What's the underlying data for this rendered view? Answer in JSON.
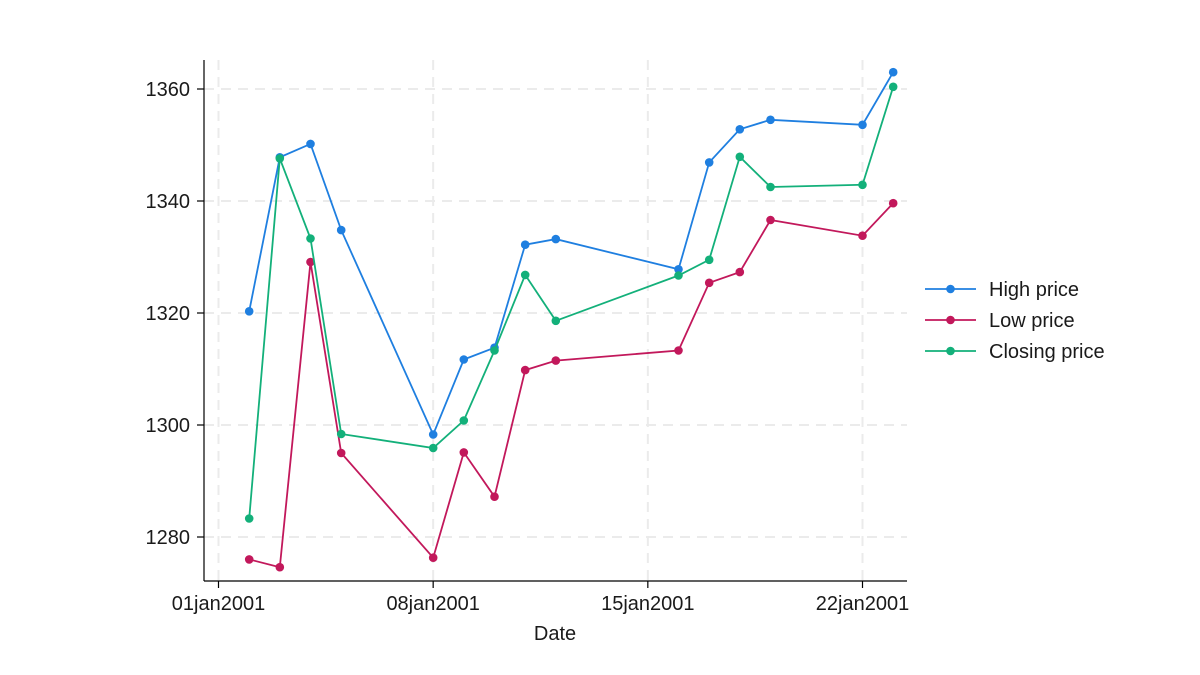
{
  "chart_data": {
    "type": "line",
    "xlabel": "Date",
    "ylabel": "",
    "xlim": [
      "2000-12-31",
      "2001-01-22"
    ],
    "ylim": [
      1272,
      1365
    ],
    "grid": true,
    "legend_position": "right",
    "x_ticks": [
      {
        "date": "2001-01-01",
        "label": "01jan2001"
      },
      {
        "date": "2001-01-08",
        "label": "08jan2001"
      },
      {
        "date": "2001-01-15",
        "label": "15jan2001"
      },
      {
        "date": "2001-01-22",
        "label": "22jan2001"
      }
    ],
    "y_ticks": [
      {
        "value": 1280,
        "label": "1280"
      },
      {
        "value": 1300,
        "label": "1300"
      },
      {
        "value": 1320,
        "label": "1320"
      },
      {
        "value": 1340,
        "label": "1340"
      },
      {
        "value": 1360,
        "label": "1360"
      }
    ],
    "x": [
      "2001-01-02",
      "2001-01-03",
      "2001-01-04",
      "2001-01-05",
      "2001-01-08",
      "2001-01-09",
      "2001-01-10",
      "2001-01-11",
      "2001-01-12",
      "2001-01-16",
      "2001-01-17",
      "2001-01-18",
      "2001-01-19",
      "2001-01-22",
      "2001-01-23"
    ],
    "series": [
      {
        "name": "High price",
        "color": "#1f7fe0",
        "values": [
          1320.3,
          1347.8,
          1350.2,
          1334.8,
          1298.3,
          1311.7,
          1313.8,
          1332.2,
          1333.2,
          1327.8,
          1346.9,
          1352.8,
          1354.5,
          1353.6,
          1363.0
        ]
      },
      {
        "name": "Low price",
        "color": "#c2185b",
        "values": [
          1276.0,
          1274.6,
          1329.1,
          1295.0,
          1276.3,
          1295.1,
          1287.2,
          1309.8,
          1311.5,
          1313.3,
          1325.4,
          1327.3,
          1336.6,
          1333.8,
          1339.6
        ]
      },
      {
        "name": "Closing price",
        "color": "#13b07a",
        "values": [
          1283.3,
          1347.6,
          1333.3,
          1298.4,
          1295.9,
          1300.8,
          1313.3,
          1326.8,
          1318.6,
          1326.7,
          1329.5,
          1347.9,
          1342.5,
          1342.9,
          1360.4
        ]
      }
    ]
  }
}
